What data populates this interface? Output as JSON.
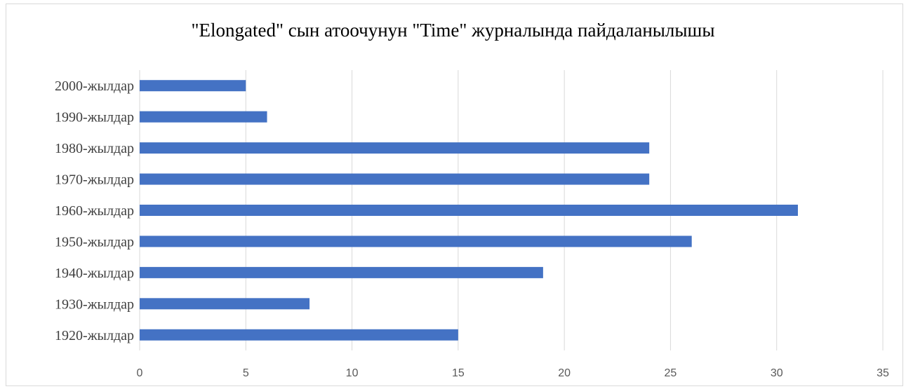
{
  "chart_data": {
    "type": "bar",
    "orientation": "horizontal",
    "title": "\"Elongated\" сын атоочунун \"Time\" журналында пайдаланылышы",
    "categories": [
      "2000-жылдар",
      "1990-жылдар",
      "1980-жылдар",
      "1970-жылдар",
      "1960-жылдар",
      "1950-жылдар",
      "1940-жылдар",
      "1930-жылдар",
      "1920-жылдар"
    ],
    "values": [
      5,
      6,
      24,
      24,
      31,
      26,
      19,
      8,
      15
    ],
    "xlim": [
      0,
      35
    ],
    "xticks": [
      0,
      5,
      10,
      15,
      20,
      25,
      30,
      35
    ],
    "xlabel": "",
    "ylabel": "",
    "grid": "vertical",
    "legend": "none",
    "bar_color": "#4472C4"
  }
}
